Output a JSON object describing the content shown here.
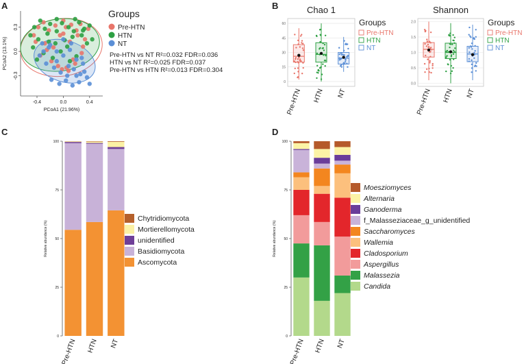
{
  "panel_labels": {
    "a": "A",
    "b": "B",
    "c": "C",
    "d": "D"
  },
  "colors": {
    "pre_htn": "#e8756a",
    "htn": "#2ea043",
    "nt": "#5b8fd6",
    "axis": "#555555",
    "text": "#222222"
  },
  "chart_data": [
    {
      "id": "A",
      "type": "scatter",
      "title": "",
      "xlabel": "PCoA1 (21.96%)",
      "ylabel": "PCoA2 (13.1%)",
      "xlim": [
        -0.65,
        0.6
      ],
      "ylim": [
        -0.55,
        0.5
      ],
      "xticks": [
        -0.4,
        0.0,
        0.4
      ],
      "xtick_labels": [
        "-0.4",
        "0.0",
        "0.4"
      ],
      "yticks": [
        -0.3,
        0.0,
        0.3
      ],
      "ytick_labels": [
        "-0.3",
        "0.0",
        "0.3"
      ],
      "legend_title": "Groups",
      "legend": [
        "Pre-HTN",
        "HTN",
        "NT"
      ],
      "stats": [
        "Pre-HTN vs NT R²=0.032 FDR=0.036",
        "HTN vs NT R²=0.025 FDR=0.037",
        "Pre-HTN vs HTN R²=0.013 FDR=0.304"
      ],
      "series": [
        {
          "name": "Pre-HTN",
          "x": [
            -0.38,
            -0.3,
            -0.22,
            -0.12,
            -0.05,
            0.04,
            0.12,
            0.2,
            0.26,
            0.33,
            -0.42,
            -0.28,
            -0.15,
            0.0,
            0.1,
            0.22,
            0.3,
            -0.35,
            -0.18,
            -0.08,
            0.05,
            0.15,
            0.28,
            -0.25,
            -0.02,
            0.08,
            0.18,
            -0.45,
            0.38,
            0.0
          ],
          "y": [
            0.3,
            0.36,
            0.26,
            0.32,
            0.2,
            0.3,
            0.33,
            0.26,
            0.34,
            0.15,
            0.12,
            0.1,
            0.05,
            0.22,
            0.12,
            0.2,
            0.06,
            -0.05,
            -0.12,
            -0.18,
            -0.2,
            -0.1,
            -0.02,
            0.02,
            -0.22,
            -0.24,
            -0.15,
            0.2,
            0.28,
            0.38
          ]
        },
        {
          "name": "HTN",
          "x": [
            -0.5,
            -0.44,
            -0.35,
            -0.28,
            -0.2,
            -0.1,
            -0.02,
            0.08,
            0.16,
            0.24,
            0.32,
            0.4,
            -0.46,
            -0.38,
            -0.24,
            -0.12,
            0.02,
            0.14,
            0.28,
            0.36,
            -0.3,
            -0.16,
            -0.04,
            0.1,
            0.2,
            -0.4,
            -0.22,
            0.06,
            0.3,
            0.44,
            -0.1,
            0.18
          ],
          "y": [
            0.2,
            0.3,
            0.38,
            0.28,
            0.34,
            0.25,
            0.35,
            0.3,
            0.25,
            0.36,
            0.28,
            0.32,
            0.05,
            0.15,
            0.22,
            0.1,
            0.14,
            0.18,
            0.2,
            0.1,
            -0.02,
            -0.08,
            0.0,
            -0.12,
            -0.06,
            -0.1,
            0.12,
            0.06,
            0.26,
            0.15,
            0.4,
            0.4
          ]
        },
        {
          "name": "NT",
          "x": [
            -0.32,
            -0.22,
            -0.1,
            0.0,
            0.1,
            0.2,
            0.3,
            -0.26,
            -0.14,
            -0.04,
            0.06,
            0.16,
            0.26,
            0.36,
            -0.18,
            -0.06,
            0.04,
            0.14,
            0.24,
            -0.3,
            -0.1,
            0.08,
            0.2,
            0.32,
            -0.2,
            0.0,
            0.12,
            0.28,
            -0.36,
            0.4
          ],
          "y": [
            0.1,
            0.05,
            0.0,
            -0.05,
            0.02,
            -0.1,
            -0.15,
            -0.15,
            -0.2,
            -0.26,
            -0.3,
            -0.22,
            -0.28,
            -0.32,
            -0.35,
            -0.4,
            -0.36,
            -0.42,
            -0.38,
            0.0,
            -0.12,
            -0.18,
            -0.3,
            -0.25,
            0.08,
            0.15,
            0.1,
            -0.08,
            -0.05,
            -0.4
          ]
        }
      ]
    },
    {
      "id": "B1",
      "type": "box",
      "title": "Chao 1",
      "xlabel": "",
      "ylabel": "",
      "ylim": [
        -5,
        65
      ],
      "yticks": [
        0,
        15,
        30,
        45,
        60
      ],
      "ytick_labels": [
        "0",
        "15",
        "30",
        "45",
        "60"
      ],
      "categories": [
        "Pre-HTN",
        "HTN",
        "NT"
      ],
      "legend_title": "Groups",
      "legend": [
        "Pre-HTN",
        "HTN",
        "NT"
      ],
      "boxes": [
        {
          "name": "Pre-HTN",
          "min": 2,
          "q1": 20,
          "median": 26,
          "q3": 38,
          "max": 55,
          "mean": 27
        },
        {
          "name": "HTN",
          "min": 0,
          "q1": 20,
          "median": 28,
          "q3": 40,
          "max": 60,
          "mean": 29
        },
        {
          "name": "NT",
          "min": 10,
          "q1": 18,
          "median": 24,
          "q3": 30,
          "max": 46,
          "mean": 25
        }
      ]
    },
    {
      "id": "B2",
      "type": "box",
      "title": "Shannon",
      "xlabel": "",
      "ylabel": "",
      "ylim": [
        -0.1,
        2.1
      ],
      "yticks": [
        0.0,
        0.5,
        1.0,
        1.5,
        2.0
      ],
      "ytick_labels": [
        "0.0",
        "0.5",
        "1.0",
        "1.5",
        "2.0"
      ],
      "categories": [
        "Pre-HTN",
        "HTN",
        "NT"
      ],
      "legend_title": "Groups",
      "legend": [
        "Pre-HTN",
        "HTN",
        "NT"
      ],
      "boxes": [
        {
          "name": "Pre-HTN",
          "min": 0.1,
          "q1": 0.85,
          "median": 1.1,
          "q3": 1.32,
          "max": 2.0,
          "mean": 1.08
        },
        {
          "name": "HTN",
          "min": 0.0,
          "q1": 0.8,
          "median": 1.0,
          "q3": 1.3,
          "max": 1.95,
          "mean": 1.02
        },
        {
          "name": "NT",
          "min": 0.1,
          "q1": 0.7,
          "median": 0.95,
          "q3": 1.2,
          "max": 1.9,
          "mean": 0.93
        }
      ]
    },
    {
      "id": "C",
      "type": "bar",
      "stacked": true,
      "title": "",
      "xlabel": "",
      "ylabel": "Relative abundance (%)",
      "ylim": [
        0,
        100
      ],
      "yticks": [
        0,
        25,
        50,
        75,
        100
      ],
      "ytick_labels": [
        "0",
        "25",
        "50",
        "75",
        "100"
      ],
      "categories": [
        "Pre-HTN",
        "HTN",
        "NT"
      ],
      "legend_order": [
        "Chytridiomycota",
        "Mortierellomycota",
        "unidentified",
        "Basidiomycota",
        "Ascomycota"
      ],
      "series": [
        {
          "name": "Ascomycota",
          "color": "#f39233",
          "values": [
            54.5,
            58.5,
            64.5
          ]
        },
        {
          "name": "Basidiomycota",
          "color": "#c8b2d8",
          "values": [
            44.5,
            40.2,
            31.5
          ]
        },
        {
          "name": "unidentified",
          "color": "#6f3f98",
          "values": [
            0.6,
            0.4,
            1.0
          ]
        },
        {
          "name": "Mortierellomycota",
          "color": "#fbf1a5",
          "values": [
            0.3,
            0.7,
            2.7
          ]
        },
        {
          "name": "Chytridiomycota",
          "color": "#b5602b",
          "values": [
            0.1,
            0.2,
            0.3
          ]
        }
      ]
    },
    {
      "id": "D",
      "type": "bar",
      "stacked": true,
      "title": "",
      "xlabel": "",
      "ylabel": "Relative abundance (%)",
      "ylim": [
        0,
        100
      ],
      "yticks": [
        0,
        25,
        50,
        75,
        100
      ],
      "ytick_labels": [
        "0",
        "25",
        "50",
        "75",
        "100"
      ],
      "categories": [
        "Pre-HTN",
        "HTN",
        "NT"
      ],
      "legend_order": [
        "Moesziomyces",
        "Alternaria",
        "Ganoderma",
        "f_Malasseziaceae_g_unidentified",
        "Saccharomyces",
        "Wallemia",
        "Cladosporium",
        "Aspergillus",
        "Malassezia",
        "Candida"
      ],
      "italic": [
        "Moesziomyces",
        "Alternaria",
        "Ganoderma",
        "Saccharomyces",
        "Wallemia",
        "Cladosporium",
        "Aspergillus",
        "Malassezia",
        "Candida"
      ],
      "series": [
        {
          "name": "Candida",
          "color": "#b3d98b",
          "values": [
            30,
            18,
            22
          ]
        },
        {
          "name": "Malassezia",
          "color": "#33a146",
          "values": [
            17.5,
            28.5,
            9
          ]
        },
        {
          "name": "Aspergillus",
          "color": "#f29b9b",
          "values": [
            14.5,
            12,
            20
          ]
        },
        {
          "name": "Cladosporium",
          "color": "#e3262b",
          "values": [
            13,
            14.5,
            20
          ]
        },
        {
          "name": "Wallemia",
          "color": "#fcc07d",
          "values": [
            6.5,
            4,
            12.5
          ]
        },
        {
          "name": "Saccharomyces",
          "color": "#f3861f",
          "values": [
            2.5,
            9,
            4.5
          ]
        },
        {
          "name": "f_Malasseziaceae_g_unidentified",
          "color": "#c9b3d9",
          "values": [
            11.5,
            2.5,
            2
          ]
        },
        {
          "name": "Ganoderma",
          "color": "#6a3d9a",
          "values": [
            0.5,
            3,
            3
          ]
        },
        {
          "name": "Alternaria",
          "color": "#fcf3a6",
          "values": [
            3,
            4.5,
            4
          ]
        },
        {
          "name": "Moesziomyces",
          "color": "#b55a2b",
          "values": [
            1,
            4,
            3
          ]
        }
      ]
    }
  ]
}
